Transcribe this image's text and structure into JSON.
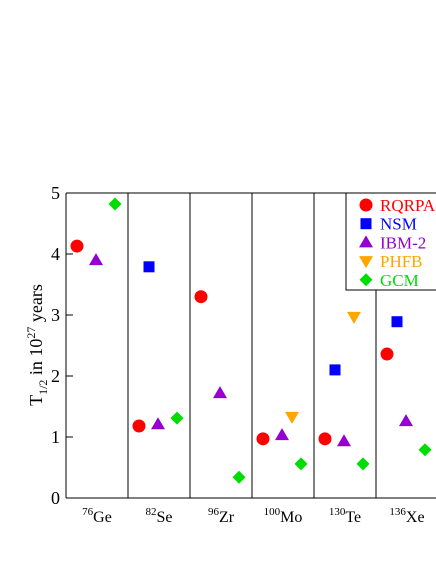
{
  "chart_data": {
    "type": "scatter",
    "ylabel_parts": [
      "T",
      "1/2",
      " in 10",
      "27",
      " years"
    ],
    "categories": [
      "Ge",
      "Se",
      "Zr",
      "Mo",
      "Te",
      "Xe"
    ],
    "category_superscripts": [
      "76",
      "82",
      "96",
      "100",
      "130",
      "136"
    ],
    "series": [
      {
        "name": "RQRPA",
        "color": "#ff0000",
        "marker": "circle",
        "values": [
          4.13,
          1.18,
          3.3,
          0.97,
          0.97,
          2.36
        ]
      },
      {
        "name": "NSM",
        "color": "#0000ff",
        "marker": "square",
        "values": [
          null,
          3.79,
          null,
          null,
          2.1,
          2.89
        ]
      },
      {
        "name": "IBM-2",
        "color": "#9400d3",
        "marker": "triangle-up",
        "values": [
          3.9,
          1.21,
          1.72,
          1.03,
          0.93,
          1.26
        ]
      },
      {
        "name": "PHFB",
        "color": "#ffa500",
        "marker": "triangle-down",
        "values": [
          null,
          null,
          null,
          1.33,
          2.97,
          null
        ]
      },
      {
        "name": "GCM",
        "color": "#00dd00",
        "marker": "diamond",
        "values": [
          4.82,
          1.31,
          0.34,
          0.56,
          0.56,
          0.79
        ]
      }
    ],
    "ylim": [
      0,
      5
    ],
    "yticks": [
      0,
      1,
      2,
      3,
      4,
      5
    ],
    "legend": "top-right"
  }
}
